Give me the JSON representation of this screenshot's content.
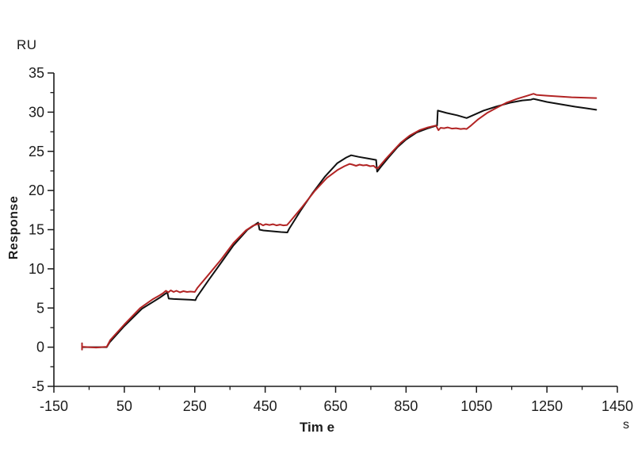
{
  "chart_data": {
    "type": "line",
    "title": "",
    "xlabel": "Tim e",
    "ylabel": "Response",
    "y_unit": "RU",
    "x_unit": "s",
    "xlim": [
      -150,
      1450
    ],
    "ylim": [
      -5,
      35
    ],
    "x_major_ticks": [
      -150,
      50,
      250,
      450,
      650,
      850,
      1050,
      1250,
      1450
    ],
    "x_minor_ticks": [
      -50,
      150,
      350,
      550,
      750,
      950,
      1150,
      1350
    ],
    "y_major_ticks": [
      -5,
      0,
      5,
      10,
      15,
      20,
      25,
      30,
      35
    ],
    "y_minor_ticks": [
      -2.5,
      2.5,
      7.5,
      12.5,
      17.5,
      22.5,
      27.5,
      32.5
    ],
    "grid": false,
    "legend": "none",
    "axis_color": "#1a1a1a",
    "tick_label_color": "#1c1c1c",
    "series": [
      {
        "name": "black-curve",
        "color": "#111111",
        "width": 2,
        "points": [
          [
            -70,
            0.5
          ],
          [
            -70,
            -0.3
          ],
          [
            -70,
            0
          ],
          [
            -30,
            0
          ],
          [
            0,
            0
          ],
          [
            8,
            0.6
          ],
          [
            50,
            2.7
          ],
          [
            100,
            4.9
          ],
          [
            150,
            6.3
          ],
          [
            172,
            7.0
          ],
          [
            176,
            6.2
          ],
          [
            190,
            6.15
          ],
          [
            215,
            6.1
          ],
          [
            240,
            6.05
          ],
          [
            252,
            6.0
          ],
          [
            256,
            6.4
          ],
          [
            290,
            8.6
          ],
          [
            325,
            10.8
          ],
          [
            360,
            13.0
          ],
          [
            400,
            15.0
          ],
          [
            430,
            15.9
          ],
          [
            434,
            15.0
          ],
          [
            445,
            14.9
          ],
          [
            470,
            14.8
          ],
          [
            495,
            14.7
          ],
          [
            513,
            14.65
          ],
          [
            518,
            15.1
          ],
          [
            550,
            17.4
          ],
          [
            585,
            19.7
          ],
          [
            620,
            21.8
          ],
          [
            655,
            23.5
          ],
          [
            680,
            24.2
          ],
          [
            694,
            24.5
          ],
          [
            715,
            24.3
          ],
          [
            740,
            24.1
          ],
          [
            765,
            23.9
          ],
          [
            768,
            22.4
          ],
          [
            778,
            23.0
          ],
          [
            800,
            24.2
          ],
          [
            825,
            25.5
          ],
          [
            850,
            26.5
          ],
          [
            880,
            27.4
          ],
          [
            910,
            27.9
          ],
          [
            938,
            28.3
          ],
          [
            940,
            30.2
          ],
          [
            965,
            29.9
          ],
          [
            995,
            29.6
          ],
          [
            1022,
            29.25
          ],
          [
            1040,
            29.6
          ],
          [
            1070,
            30.2
          ],
          [
            1105,
            30.7
          ],
          [
            1145,
            31.2
          ],
          [
            1180,
            31.5
          ],
          [
            1205,
            31.6
          ],
          [
            1212,
            31.7
          ],
          [
            1250,
            31.3
          ],
          [
            1290,
            31.0
          ],
          [
            1330,
            30.7
          ],
          [
            1360,
            30.5
          ],
          [
            1390,
            30.3
          ]
        ]
      },
      {
        "name": "red-curve",
        "color": "#b22424",
        "width": 2,
        "points": [
          [
            -70,
            0.5
          ],
          [
            -70,
            -0.3
          ],
          [
            -70,
            0.05
          ],
          [
            -30,
            -0.05
          ],
          [
            0,
            0.05
          ],
          [
            10,
            0.9
          ],
          [
            50,
            2.9
          ],
          [
            95,
            5.0
          ],
          [
            130,
            6.1
          ],
          [
            150,
            6.6
          ],
          [
            160,
            6.9
          ],
          [
            168,
            7.2
          ],
          [
            175,
            7.0
          ],
          [
            182,
            7.25
          ],
          [
            190,
            7.05
          ],
          [
            198,
            7.2
          ],
          [
            208,
            7.0
          ],
          [
            218,
            7.15
          ],
          [
            228,
            7.05
          ],
          [
            238,
            7.1
          ],
          [
            250,
            7.05
          ],
          [
            258,
            7.6
          ],
          [
            290,
            9.3
          ],
          [
            325,
            11.2
          ],
          [
            360,
            13.3
          ],
          [
            395,
            14.9
          ],
          [
            415,
            15.5
          ],
          [
            428,
            15.7
          ],
          [
            436,
            15.75
          ],
          [
            444,
            15.55
          ],
          [
            452,
            15.7
          ],
          [
            462,
            15.6
          ],
          [
            472,
            15.7
          ],
          [
            482,
            15.55
          ],
          [
            492,
            15.65
          ],
          [
            502,
            15.55
          ],
          [
            512,
            15.6
          ],
          [
            520,
            16.0
          ],
          [
            555,
            17.9
          ],
          [
            590,
            19.9
          ],
          [
            625,
            21.6
          ],
          [
            655,
            22.6
          ],
          [
            675,
            23.1
          ],
          [
            690,
            23.4
          ],
          [
            698,
            23.3
          ],
          [
            708,
            23.15
          ],
          [
            718,
            23.3
          ],
          [
            728,
            23.2
          ],
          [
            738,
            23.25
          ],
          [
            748,
            23.1
          ],
          [
            758,
            23.15
          ],
          [
            764,
            22.9
          ],
          [
            770,
            22.85
          ],
          [
            790,
            23.9
          ],
          [
            812,
            25.0
          ],
          [
            835,
            26.1
          ],
          [
            860,
            27.0
          ],
          [
            888,
            27.7
          ],
          [
            912,
            28.05
          ],
          [
            935,
            28.3
          ],
          [
            942,
            27.7
          ],
          [
            948,
            28.0
          ],
          [
            958,
            27.95
          ],
          [
            968,
            28.05
          ],
          [
            980,
            27.9
          ],
          [
            992,
            27.95
          ],
          [
            1005,
            27.85
          ],
          [
            1015,
            27.9
          ],
          [
            1022,
            27.85
          ],
          [
            1032,
            28.2
          ],
          [
            1055,
            29.1
          ],
          [
            1080,
            29.9
          ],
          [
            1105,
            30.5
          ],
          [
            1135,
            31.2
          ],
          [
            1165,
            31.7
          ],
          [
            1195,
            32.1
          ],
          [
            1212,
            32.35
          ],
          [
            1220,
            32.2
          ],
          [
            1250,
            32.1
          ],
          [
            1285,
            32.0
          ],
          [
            1320,
            31.9
          ],
          [
            1355,
            31.85
          ],
          [
            1390,
            31.8
          ]
        ]
      }
    ]
  }
}
